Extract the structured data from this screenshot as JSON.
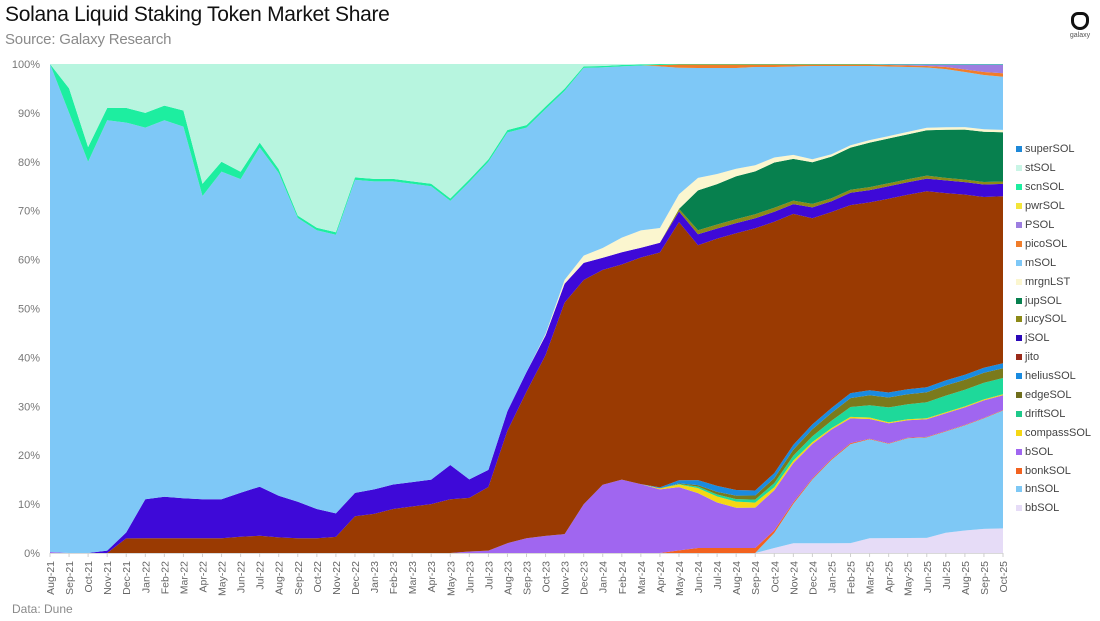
{
  "header": {
    "title": "Solana Liquid Staking Token Market Share",
    "subtitle": "Source: Galaxy Research",
    "logo_text": "galaxy"
  },
  "footer": {
    "source": "Data: Dune"
  },
  "chart_data": {
    "type": "area",
    "stacked": true,
    "normalized": true,
    "title": "Solana Liquid Staking Token Market Share",
    "subtitle": "Source: Galaxy Research",
    "xlabel": "",
    "ylabel": "",
    "ylim": [
      0,
      100
    ],
    "yticks": [
      "0%",
      "10%",
      "20%",
      "30%",
      "40%",
      "50%",
      "60%",
      "70%",
      "80%",
      "90%",
      "100%"
    ],
    "grid": false,
    "legend_position": "right",
    "categories": [
      "Aug-21",
      "Sep-21",
      "Oct-21",
      "Nov-21",
      "Dec-21",
      "Jan-22",
      "Feb-22",
      "Mar-22",
      "Apr-22",
      "May-22",
      "Jun-22",
      "Jul-22",
      "Aug-22",
      "Sep-22",
      "Oct-22",
      "Nov-22",
      "Dec-22",
      "Jan-23",
      "Feb-23",
      "Mar-23",
      "Apr-23",
      "May-23",
      "Jun-23",
      "Jul-23",
      "Aug-23",
      "Sep-23",
      "Oct-23",
      "Nov-23",
      "Dec-23",
      "Jan-24",
      "Feb-24",
      "Mar-24",
      "Apr-24",
      "May-24",
      "Jun-24",
      "Jul-24",
      "Aug-24",
      "Sep-24",
      "Oct-24",
      "Nov-24",
      "Dec-24",
      "Jan-25",
      "Feb-25",
      "Mar-25",
      "Apr-25",
      "May-25",
      "Jun-25",
      "Jul-25",
      "Aug-25",
      "Sep-25",
      "Oct-25"
    ],
    "series": [
      {
        "name": "bbSOL",
        "color": "#e6dcf7",
        "values": [
          0,
          0,
          0,
          0,
          0,
          0,
          0,
          0,
          0,
          0,
          0,
          0,
          0,
          0,
          0,
          0,
          0,
          0,
          0,
          0,
          0,
          0,
          0,
          0,
          0,
          0,
          0,
          0,
          0,
          0,
          0,
          0,
          0,
          0,
          0,
          0,
          0,
          0,
          1,
          2,
          2,
          2,
          2,
          3,
          3,
          3,
          3,
          4,
          4.5,
          4.8,
          5
        ]
      },
      {
        "name": "bnSOL",
        "color": "#7ec8f5",
        "values": [
          0,
          0,
          0,
          0,
          0,
          0,
          0,
          0,
          0,
          0,
          0,
          0,
          0,
          0,
          0,
          0,
          0,
          0,
          0,
          0,
          0,
          0,
          0,
          0,
          0,
          0,
          0,
          0,
          0,
          0,
          0,
          0,
          0,
          0,
          0,
          0,
          0,
          0,
          3,
          8,
          13,
          17,
          20,
          20,
          19,
          20,
          20,
          20,
          21,
          22,
          24
        ]
      },
      {
        "name": "bonkSOL",
        "color": "#f2621f",
        "values": [
          0,
          0,
          0,
          0,
          0,
          0,
          0,
          0,
          0,
          0,
          0,
          0,
          0,
          0,
          0,
          0,
          0,
          0,
          0,
          0,
          0,
          0,
          0,
          0,
          0,
          0,
          0,
          0,
          0,
          0,
          0,
          0,
          0,
          0.5,
          1,
          1,
          1,
          1,
          0.5,
          0.3,
          0.2,
          0.2,
          0.2,
          0.1,
          0.1,
          0.1,
          0.1,
          0.1,
          0.1,
          0.1,
          0.1
        ]
      },
      {
        "name": "bSOL",
        "color": "#a066f0",
        "values": [
          0.2,
          0,
          0,
          0,
          0,
          0,
          0,
          0,
          0,
          0,
          0,
          0,
          0,
          0,
          0,
          0,
          0,
          0,
          0,
          0,
          0,
          0,
          0.3,
          0.5,
          2,
          3,
          3.5,
          4,
          10,
          14,
          15,
          14,
          13,
          12,
          11,
          9,
          8,
          8,
          8,
          8,
          7,
          6,
          5,
          4,
          4,
          3.5,
          3.5,
          3.5,
          3.5,
          3.5,
          3
        ]
      },
      {
        "name": "compassSOL",
        "color": "#f5d714",
        "values": [
          0,
          0,
          0,
          0,
          0,
          0,
          0,
          0,
          0,
          0,
          0,
          0,
          0,
          0,
          0,
          0,
          0,
          0,
          0,
          0,
          0,
          0,
          0,
          0,
          0,
          0,
          0,
          0,
          0,
          0,
          0,
          0,
          0.2,
          0.5,
          1,
          1.2,
          1.2,
          1,
          0.6,
          0.5,
          0.4,
          0.3,
          0.3,
          0.3,
          0.2,
          0.2,
          0.2,
          0.2,
          0.2,
          0.2,
          0.2
        ]
      },
      {
        "name": "driftSOL",
        "color": "#1ed99a",
        "values": [
          0,
          0,
          0,
          0,
          0,
          0,
          0,
          0,
          0,
          0,
          0,
          0,
          0,
          0,
          0,
          0,
          0,
          0,
          0,
          0,
          0,
          0,
          0,
          0,
          0,
          0,
          0,
          0,
          0,
          0,
          0,
          0,
          0,
          0.1,
          0.3,
          0.4,
          0.5,
          0.6,
          0.8,
          1,
          1.2,
          1.5,
          2,
          2.5,
          3,
          3,
          3.2,
          3.3,
          3.3,
          3.3,
          3.3
        ]
      },
      {
        "name": "edgeSOL",
        "color": "#7b7a1c",
        "values": [
          0,
          0,
          0,
          0,
          0,
          0,
          0,
          0,
          0,
          0,
          0,
          0,
          0,
          0,
          0,
          0,
          0,
          0,
          0,
          0,
          0,
          0,
          0,
          0,
          0,
          0,
          0,
          0,
          0,
          0,
          0,
          0,
          0,
          0.1,
          0.3,
          0.5,
          0.7,
          0.8,
          1,
          1.2,
          1.4,
          1.6,
          1.8,
          2,
          2,
          2,
          2,
          2,
          2,
          2,
          2
        ]
      },
      {
        "name": "heliusSOL",
        "color": "#1a8be0",
        "values": [
          0,
          0,
          0,
          0,
          0,
          0,
          0,
          0,
          0,
          0,
          0,
          0,
          0,
          0,
          0,
          0,
          0,
          0,
          0,
          0,
          0,
          0,
          0,
          0,
          0,
          0,
          0,
          0,
          0,
          0,
          0,
          0,
          0.2,
          0.6,
          1,
          1.2,
          1.1,
          1,
          1,
          1,
          1,
          1,
          1,
          1,
          1,
          1,
          1,
          1,
          1,
          1,
          1
        ]
      },
      {
        "name": "jito",
        "color": "#9a3a02",
        "values": [
          0,
          0,
          0,
          0,
          3,
          3,
          3,
          3,
          3,
          3,
          3.3,
          3.5,
          3.2,
          3,
          3,
          3.3,
          7.5,
          8,
          9,
          9.5,
          10,
          11,
          11,
          13,
          23,
          30,
          37,
          49,
          46,
          44,
          44,
          46,
          48,
          49,
          47,
          49,
          51,
          52,
          50,
          47,
          42,
          40,
          38,
          38,
          39,
          39,
          39,
          37,
          36,
          34,
          34
        ]
      },
      {
        "name": "jSOL",
        "color": "#3e09d8",
        "values": [
          0,
          0,
          0,
          0.5,
          1.2,
          8,
          8.5,
          8.2,
          8,
          8,
          9,
          10,
          8.5,
          7.5,
          6,
          4.8,
          4.8,
          5,
          5,
          5,
          5,
          7,
          3.8,
          3.5,
          4,
          4,
          4,
          4,
          3.5,
          2.5,
          2.5,
          2,
          2,
          2,
          2.2,
          2,
          2,
          2,
          2,
          2,
          2.2,
          2.2,
          2.5,
          2.5,
          2.5,
          2.5,
          2.5,
          2.5,
          2.5,
          2.5,
          2.5
        ]
      },
      {
        "name": "jucySOL",
        "color": "#8c8a17",
        "values": [
          0,
          0,
          0,
          0,
          0,
          0,
          0,
          0,
          0,
          0,
          0,
          0,
          0,
          0,
          0,
          0,
          0,
          0,
          0,
          0,
          0,
          0,
          0,
          0,
          0,
          0,
          0,
          0,
          0,
          0,
          0,
          0,
          0,
          0.5,
          0.8,
          0.8,
          0.8,
          0.8,
          0.8,
          0.7,
          0.7,
          0.6,
          0.6,
          0.6,
          0.6,
          0.6,
          0.6,
          0.5,
          0.5,
          0.5,
          0.5
        ]
      },
      {
        "name": "jupSOL",
        "color": "#07804e",
        "values": [
          0,
          0,
          0,
          0,
          0,
          0,
          0,
          0,
          0,
          0,
          0,
          0,
          0,
          0,
          0,
          0,
          0,
          0,
          0,
          0,
          0,
          0,
          0,
          0,
          0,
          0,
          0,
          0,
          0,
          0,
          0,
          0,
          0,
          0,
          8,
          8,
          8.5,
          8.5,
          9,
          8.5,
          8.5,
          8.5,
          8.5,
          9,
          9,
          9,
          9,
          9.5,
          10,
          10,
          10
        ]
      },
      {
        "name": "mrgnLST",
        "color": "#fbf6cf",
        "values": [
          0,
          0,
          0,
          0,
          0,
          0,
          0,
          0,
          0,
          0,
          0,
          0,
          0,
          0,
          0,
          0,
          0,
          0,
          0,
          0,
          0,
          0,
          0,
          0,
          0,
          0,
          0.3,
          0.8,
          1.5,
          2,
          3,
          3.5,
          3,
          2.8,
          2.5,
          2,
          1.5,
          1.2,
          1,
          0.8,
          0.6,
          0.5,
          0.5,
          0.5,
          0.5,
          0.5,
          0.5,
          0.5,
          0.5,
          0.5,
          0.5
        ]
      },
      {
        "name": "mSOL",
        "color": "#7ec8f7",
        "values": [
          99.6,
          90,
          80,
          88,
          84,
          76,
          77,
          76,
          62,
          67,
          64,
          69,
          66,
          58,
          57,
          57,
          64,
          63,
          62,
          61,
          60,
          54,
          61,
          63,
          57,
          50,
          46,
          40,
          38.5,
          37,
          35,
          33.5,
          33,
          24,
          22,
          21,
          20,
          19.5,
          18,
          18,
          19,
          18,
          16,
          15,
          14,
          13,
          12,
          11.5,
          11,
          10.8,
          10.8
        ]
      },
      {
        "name": "picoSOL",
        "color": "#f07d2a",
        "values": [
          0,
          0,
          0,
          0,
          0,
          0,
          0,
          0,
          0,
          0,
          0,
          0,
          0,
          0,
          0,
          0,
          0,
          0,
          0,
          0,
          0,
          0,
          0,
          0,
          0,
          0,
          0,
          0,
          0,
          0,
          0,
          0,
          0.3,
          0.6,
          0.7,
          0.7,
          0.7,
          0.5,
          0.5,
          0.4,
          0.3,
          0.3,
          0.3,
          0.3,
          0.3,
          0.3,
          0.3,
          0.4,
          0.5,
          0.6,
          0.7
        ]
      },
      {
        "name": "PSOL",
        "color": "#9d7ee0",
        "values": [
          0,
          0,
          0,
          0,
          0,
          0,
          0,
          0,
          0,
          0,
          0,
          0,
          0,
          0,
          0,
          0,
          0,
          0,
          0,
          0,
          0,
          0,
          0,
          0,
          0,
          0,
          0,
          0,
          0,
          0,
          0,
          0,
          0,
          0,
          0,
          0,
          0,
          0,
          0,
          0,
          0,
          0,
          0,
          0,
          0.1,
          0.2,
          0.3,
          0.5,
          1,
          1.5,
          1.8
        ]
      },
      {
        "name": "pwrSOL",
        "color": "#f3e53a",
        "values": [
          0,
          0,
          0,
          0,
          0,
          0,
          0,
          0,
          0,
          0,
          0,
          0,
          0,
          0,
          0,
          0,
          0,
          0,
          0,
          0,
          0,
          0,
          0,
          0,
          0,
          0,
          0,
          0,
          0,
          0,
          0,
          0,
          0,
          0,
          0,
          0,
          0,
          0,
          0,
          0,
          0,
          0,
          0,
          0,
          0,
          0,
          0,
          0,
          0,
          0,
          0
        ]
      },
      {
        "name": "scnSOL",
        "color": "#1deea0",
        "values": [
          0,
          5,
          3,
          2.5,
          3,
          3,
          3,
          3.3,
          2.5,
          2,
          1.5,
          1,
          0.8,
          0.5,
          0.5,
          0.5,
          0.5,
          0.5,
          0.5,
          0.5,
          0.5,
          0.5,
          0.5,
          0.5,
          0.5,
          0.5,
          0.5,
          0.5,
          0.3,
          0.3,
          0.3,
          0.2,
          0.2,
          0.1,
          0.1,
          0.1,
          0.1,
          0.1,
          0.1,
          0.1,
          0.1,
          0.1,
          0.1,
          0.1,
          0.1,
          0.1,
          0.1,
          0.1,
          0.1,
          0.1,
          0.1
        ]
      },
      {
        "name": "stSOL",
        "color": "#b7f5df",
        "values": [
          0,
          5,
          17,
          9,
          9,
          10,
          8.5,
          9.5,
          24.5,
          20,
          22,
          16,
          21.5,
          31,
          33.5,
          34.4,
          23.2,
          23.5,
          23.5,
          24,
          24.5,
          27.5,
          23.7,
          19.5,
          13.5,
          12.5,
          8.7,
          5.2,
          0.5,
          0.4,
          0.2,
          0.1,
          0,
          0,
          0,
          0,
          0,
          0,
          0,
          0,
          0,
          0,
          0,
          0,
          0,
          0,
          0,
          0,
          0,
          0,
          0
        ]
      },
      {
        "name": "superSOL",
        "color": "#1e88d8",
        "values": [
          0,
          0,
          0,
          0,
          0,
          0,
          0,
          0,
          0,
          0,
          0,
          0,
          0,
          0,
          0,
          0,
          0,
          0,
          0,
          0,
          0,
          0,
          0,
          0,
          0,
          0,
          0,
          0,
          0,
          0,
          0,
          0,
          0,
          0,
          0,
          0,
          0,
          0,
          0,
          0,
          0,
          0,
          0,
          0,
          0,
          0,
          0,
          0,
          0,
          0,
          0
        ]
      }
    ]
  },
  "legend": {
    "items": [
      {
        "label": "superSOL",
        "color": "#1e88d8"
      },
      {
        "label": "stSOL",
        "color": "#c9f5e6"
      },
      {
        "label": "scnSOL",
        "color": "#1deea0"
      },
      {
        "label": "pwrSOL",
        "color": "#f3e53a"
      },
      {
        "label": "PSOL",
        "color": "#9d7ee0"
      },
      {
        "label": "picoSOL",
        "color": "#f07d2a"
      },
      {
        "label": "mSOL",
        "color": "#7ec8f7"
      },
      {
        "label": "mrgnLST",
        "color": "#fbf6cf"
      },
      {
        "label": "jupSOL",
        "color": "#07804e"
      },
      {
        "label": "jucySOL",
        "color": "#8c8a17"
      },
      {
        "label": "jSOL",
        "color": "#2a08b8"
      },
      {
        "label": "jito",
        "color": "#9a2a1a"
      },
      {
        "label": "heliusSOL",
        "color": "#1a8be0"
      },
      {
        "label": "edgeSOL",
        "color": "#6f6e1c"
      },
      {
        "label": "driftSOL",
        "color": "#1ec98a"
      },
      {
        "label": "compassSOL",
        "color": "#f5d714"
      },
      {
        "label": "bSOL",
        "color": "#a066f0"
      },
      {
        "label": "bonkSOL",
        "color": "#f2621f"
      },
      {
        "label": "bnSOL",
        "color": "#7ec8f5"
      },
      {
        "label": "bbSOL",
        "color": "#e6dcf7"
      }
    ]
  }
}
